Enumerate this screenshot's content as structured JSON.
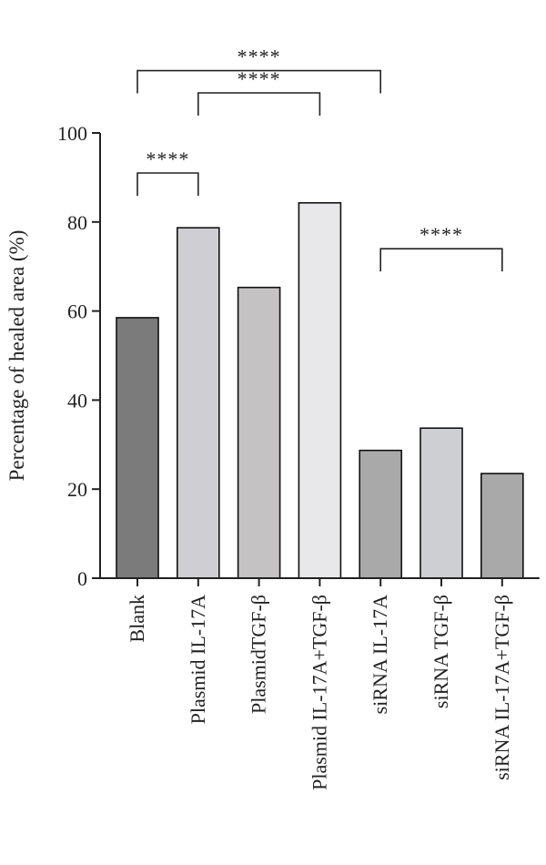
{
  "chart_data": {
    "type": "bar",
    "title": "",
    "ylabel": "Percentage of healed area (%)",
    "xlabel": "",
    "ylim": [
      0,
      100
    ],
    "yticks": [
      0,
      20,
      40,
      60,
      80,
      100
    ],
    "categories": [
      "Blank",
      "Plasmid IL-17A",
      "PlasmidTGF-β",
      "Plasmid IL-17A+TGF-β",
      "siRNA IL-17A",
      "siRNA TGF-β",
      "siRNA IL-17A+TGF-β"
    ],
    "values": [
      58.5,
      78.7,
      65.3,
      84.3,
      28.7,
      33.7,
      23.5
    ],
    "bar_colors": [
      "#7b7b7b",
      "#cfcfd3",
      "#c4c2c3",
      "#e8e8ea",
      "#a9a9a9",
      "#cecfd2",
      "#a9a9a9"
    ],
    "significance": [
      {
        "from": 0,
        "to": 4,
        "label": "****",
        "level": 114
      },
      {
        "from": 1,
        "to": 3,
        "label": "****",
        "level": 109
      },
      {
        "from": 0,
        "to": 1,
        "label": "****",
        "level": 91
      },
      {
        "from": 4,
        "to": 6,
        "label": "****",
        "level": 74
      }
    ]
  }
}
